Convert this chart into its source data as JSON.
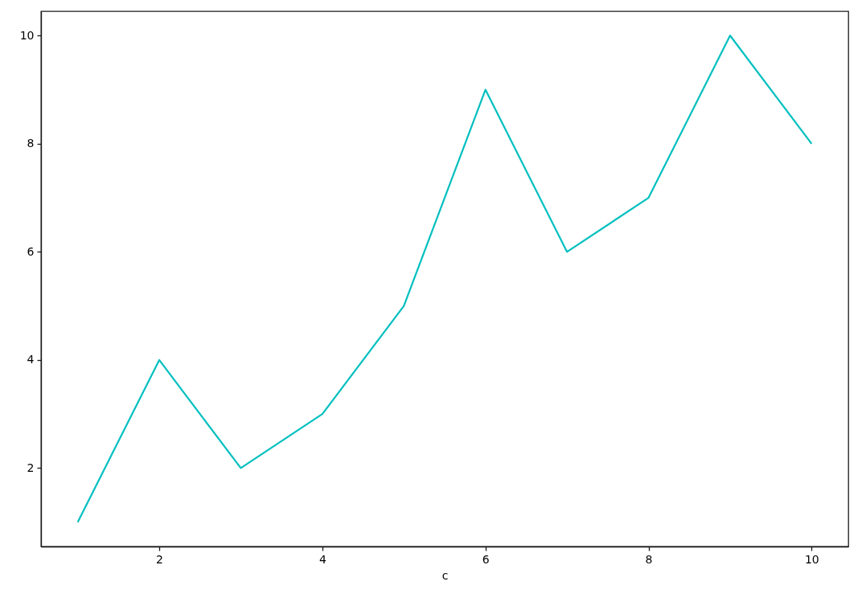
{
  "chart_data": {
    "type": "line",
    "xlabel": "c",
    "x": [
      1,
      2,
      3,
      4,
      5,
      6,
      7,
      8,
      9,
      10
    ],
    "values": [
      1,
      4,
      2,
      3,
      5,
      9,
      6,
      7,
      10,
      8
    ],
    "color": "#00bfbf",
    "xlim": [
      0.55,
      10.45
    ],
    "ylim": [
      0.55,
      10.45
    ],
    "xticks": [
      2,
      4,
      6,
      8,
      10
    ],
    "yticks": [
      2,
      4,
      6,
      8,
      10
    ]
  }
}
